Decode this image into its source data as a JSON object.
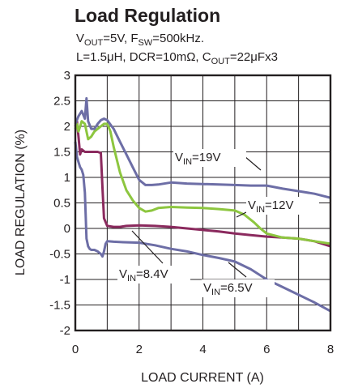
{
  "chart_data": {
    "type": "line",
    "title": "Load Regulation",
    "subtitle_line1": [
      "V",
      "OUT",
      "=5V, F",
      "SW",
      "=500kHz."
    ],
    "subtitle_line2": [
      "L=1.5μH, DCR=10mΩ, C",
      "OUT",
      "=22μFx3"
    ],
    "xlabel": "LOAD CURRENT (A)",
    "ylabel": "LOAD REGULATION (%)",
    "xlim": [
      0,
      8
    ],
    "ylim": [
      -2,
      3
    ],
    "xticks": [
      "0",
      "2",
      "4",
      "6",
      "8"
    ],
    "xtick_values": [
      0,
      2,
      4,
      6,
      8
    ],
    "yticks": [
      "3",
      "2.5",
      "2",
      "1.5",
      "1",
      "0.5",
      "0",
      "-0.5",
      "-1",
      "-1.5",
      "-2"
    ],
    "ytick_values": [
      3,
      2.5,
      2,
      1.5,
      1,
      0.5,
      0,
      -0.5,
      -1,
      -1.5,
      -2
    ],
    "grid": true,
    "series": [
      {
        "annotation": [
          "V",
          "IN",
          "=19V"
        ],
        "color": "#6d6ea6",
        "x": [
          0,
          0.1,
          0.2,
          0.3,
          0.35,
          0.4,
          0.5,
          0.6,
          0.7,
          0.8,
          0.9,
          1.0,
          1.2,
          1.4,
          1.6,
          1.8,
          2.0,
          2.2,
          2.4,
          2.6,
          3.0,
          3.5,
          4.0,
          4.5,
          5.0,
          5.5,
          6.0,
          6.5,
          7.0,
          7.5,
          8.0
        ],
        "y": [
          2.05,
          2.2,
          2.3,
          2.15,
          2.55,
          2.1,
          1.95,
          1.95,
          2.05,
          2.12,
          2.15,
          2.12,
          1.95,
          1.7,
          1.45,
          1.2,
          0.95,
          0.85,
          0.85,
          0.86,
          0.9,
          0.88,
          0.87,
          0.86,
          0.85,
          0.84,
          0.84,
          0.78,
          0.73,
          0.68,
          0.6
        ]
      },
      {
        "annotation": [
          "V",
          "IN",
          "=12V"
        ],
        "color": "#8dc63f",
        "x": [
          0,
          0.05,
          0.1,
          0.2,
          0.3,
          0.4,
          0.5,
          0.6,
          0.7,
          0.8,
          0.9,
          1.0,
          1.1,
          1.2,
          1.4,
          1.6,
          1.8,
          2.0,
          2.2,
          2.4,
          2.6,
          3.0,
          3.5,
          4.0,
          4.5,
          5.0,
          5.3,
          5.6,
          5.8,
          6.0,
          6.5,
          7.0,
          7.5,
          8.0
        ],
        "y": [
          1.95,
          2.05,
          1.9,
          2.1,
          2.05,
          1.75,
          1.8,
          1.9,
          1.95,
          2.0,
          2.05,
          2.05,
          1.9,
          1.6,
          1.1,
          0.75,
          0.55,
          0.4,
          0.33,
          0.35,
          0.4,
          0.42,
          0.41,
          0.4,
          0.38,
          0.35,
          0.27,
          0.12,
          0.0,
          -0.1,
          -0.18,
          -0.2,
          -0.25,
          -0.3
        ]
      },
      {
        "annotation": [
          "V",
          "IN",
          "=8.4V"
        ],
        "color": "#8b2a5e",
        "x": [
          0,
          0.05,
          0.1,
          0.15,
          0.2,
          0.3,
          0.4,
          0.5,
          0.6,
          0.7,
          0.8,
          0.85,
          0.9,
          1.0,
          1.2,
          1.4,
          1.6,
          2.0,
          2.5,
          3.0,
          3.5,
          4.0,
          4.5,
          5.0,
          5.5,
          6.0,
          6.5,
          7.0,
          7.5,
          8.0
        ],
        "y": [
          2.0,
          2.1,
          1.8,
          1.45,
          1.55,
          1.5,
          1.5,
          1.5,
          1.5,
          1.5,
          1.48,
          0.8,
          0.2,
          0.05,
          0.03,
          0.03,
          0.05,
          0.06,
          0.05,
          0.03,
          0.0,
          -0.03,
          -0.06,
          -0.1,
          -0.13,
          -0.16,
          -0.18,
          -0.2,
          -0.25,
          -0.35
        ]
      },
      {
        "annotation": [
          "V",
          "IN",
          "=6.5V"
        ],
        "color": "#6d6ea6",
        "x": [
          0,
          0.05,
          0.1,
          0.15,
          0.2,
          0.25,
          0.3,
          0.35,
          0.4,
          0.45,
          0.5,
          0.6,
          0.7,
          0.8,
          0.85,
          0.9,
          0.95,
          1.0,
          1.2,
          1.5,
          2.0,
          2.5,
          3.0,
          3.5,
          4.0,
          4.5,
          5.0,
          5.5,
          6.0,
          6.5,
          7.0,
          7.5,
          8.0
        ],
        "y": [
          1.7,
          1.4,
          1.3,
          1.2,
          1.15,
          1.05,
          0.7,
          -0.2,
          -0.35,
          -0.4,
          -0.42,
          -0.42,
          -0.45,
          -0.5,
          -0.55,
          -0.45,
          -0.3,
          -0.25,
          -0.26,
          -0.27,
          -0.28,
          -0.33,
          -0.4,
          -0.45,
          -0.52,
          -0.58,
          -0.65,
          -0.8,
          -1.0,
          -1.15,
          -1.3,
          -1.45,
          -1.62
        ]
      }
    ]
  }
}
